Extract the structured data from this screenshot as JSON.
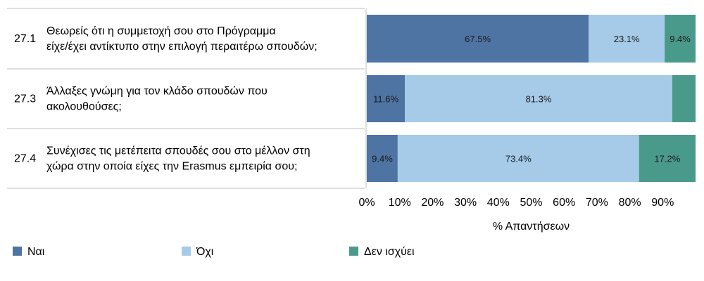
{
  "chart_data": {
    "type": "bar",
    "orientation": "horizontal",
    "stacked": true,
    "rows": [
      {
        "id": "27.1",
        "lines": [
          "Θεωρείς ότι η συμμετοχή σου στο Πρόγραμμα",
          "είχε/έχει αντίκτυπο στην επιλογή περαιτέρω σπουδών;"
        ]
      },
      {
        "id": "27.3",
        "lines": [
          "Άλλαξες γνώμη για τον κλάδο σπουδών που",
          "ακολουθούσες;"
        ]
      },
      {
        "id": "27.4",
        "lines": [
          "Συνέχισες τις μετέπειτα σπουδές σου στο μέλλον στη",
          "χώρα στην οποία είχες την Erasmus εμπειρία σου;"
        ]
      }
    ],
    "series": [
      {
        "name": "Ναι",
        "color": "#4e74a4",
        "values": [
          67.5,
          11.6,
          9.4
        ],
        "labels": [
          "67.5%",
          "11.6%",
          "9.4%"
        ]
      },
      {
        "name": "Όχι",
        "color": "#a5cbe8",
        "values": [
          23.1,
          81.3,
          73.4
        ],
        "labels": [
          "23.1%",
          "81.3%",
          "73.4%"
        ]
      },
      {
        "name": "Δεν ισχύει",
        "color": "#4a9a8c",
        "values": [
          9.4,
          7.1,
          17.2
        ],
        "labels": [
          "9.4%",
          "",
          "17.2%"
        ]
      }
    ],
    "xlim": [
      0,
      100
    ],
    "x_ticks": [
      "0%",
      "10%",
      "20%",
      "30%",
      "40%",
      "50%",
      "60%",
      "70%",
      "80%",
      "90%"
    ],
    "xlabel": "% Απαντήσεων",
    "legend_position": "bottom"
  }
}
